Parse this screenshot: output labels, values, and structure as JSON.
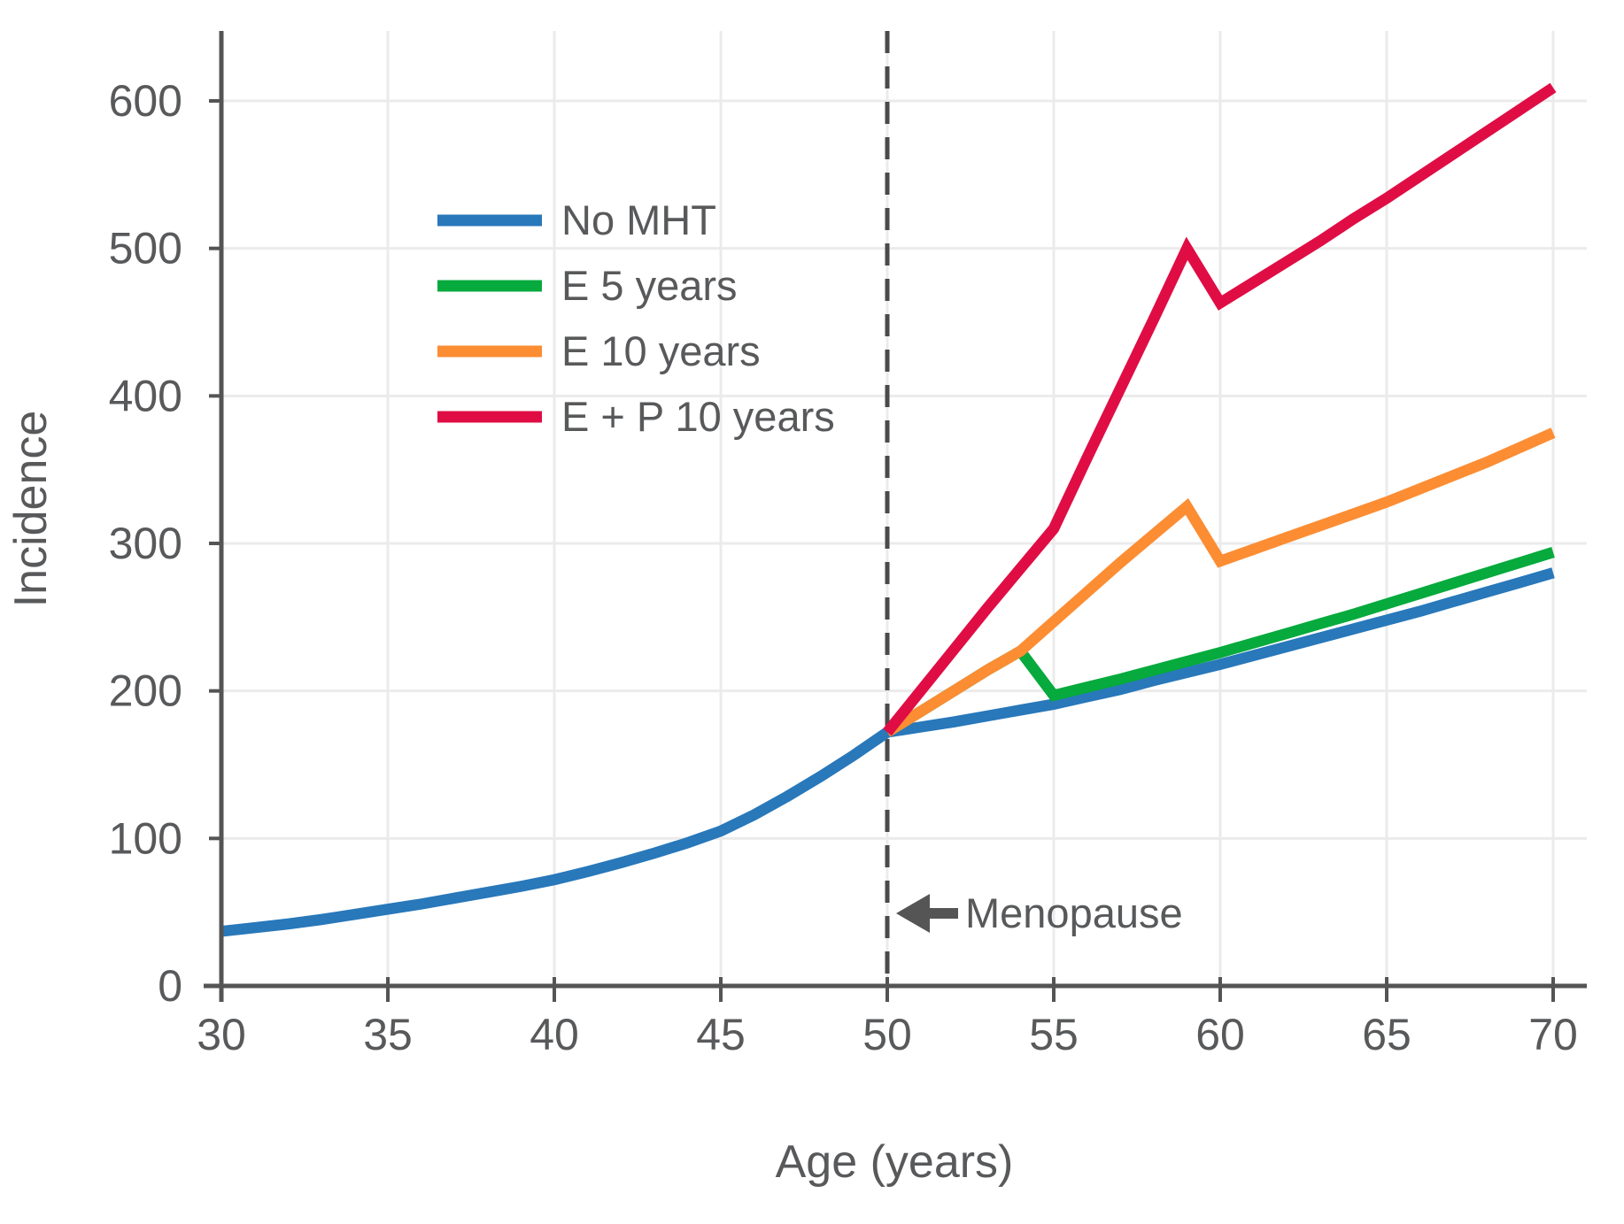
{
  "figure": {
    "ylabel": "Incidence",
    "xlabel": "Age (years)",
    "annotation_text": "Menopause"
  },
  "colors": {
    "axis": "#545454",
    "text": "#58595b",
    "grid": "#ebebeb",
    "dashed_line": "#4a4a4a",
    "arrow": "#555555"
  },
  "legend": {
    "items": [
      {
        "label": "No MHT",
        "color": "#2878ba"
      },
      {
        "label": "E 5 years",
        "color": "#06aa3d"
      },
      {
        "label": "E 10 years",
        "color": "#fc8d33"
      },
      {
        "label": "E + P 10 years",
        "color": "#e00d45"
      }
    ]
  },
  "chart_data": {
    "type": "line",
    "title": "",
    "xlabel": "Age (years)",
    "ylabel": "Incidence",
    "xlim": [
      30,
      70
    ],
    "ylim": [
      0,
      648
    ],
    "x_ticks": [
      30,
      35,
      40,
      45,
      50,
      55,
      60,
      65,
      70
    ],
    "y_ticks": [
      0,
      100,
      200,
      300,
      400,
      500,
      600
    ],
    "grid": true,
    "legend_position": "upper-left-inside",
    "vline": {
      "x": 50,
      "style": "dashed",
      "color": "#4a4a4a",
      "label": "Menopause"
    },
    "annotations": [
      {
        "text": "Menopause",
        "x": 50.5,
        "y": 50,
        "arrow": "left"
      }
    ],
    "series": [
      {
        "name": "No MHT",
        "color": "#2878ba",
        "points": [
          [
            30,
            37
          ],
          [
            31,
            39.5
          ],
          [
            32,
            42
          ],
          [
            33,
            45
          ],
          [
            34,
            48.5
          ],
          [
            35,
            52
          ],
          [
            36,
            55.5
          ],
          [
            37,
            59.5
          ],
          [
            38,
            63.5
          ],
          [
            39,
            67.5
          ],
          [
            40,
            72
          ],
          [
            41,
            77.5
          ],
          [
            42,
            83.5
          ],
          [
            43,
            90
          ],
          [
            44,
            97
          ],
          [
            45,
            105
          ],
          [
            46,
            116
          ],
          [
            47,
            128.5
          ],
          [
            48,
            142
          ],
          [
            49,
            156.5
          ],
          [
            50,
            172
          ],
          [
            51,
            175.5
          ],
          [
            52,
            179
          ],
          [
            53,
            183
          ],
          [
            54,
            187
          ],
          [
            55,
            191
          ],
          [
            56,
            196
          ],
          [
            57,
            201
          ],
          [
            58,
            207
          ],
          [
            59,
            212.5
          ],
          [
            60,
            218
          ],
          [
            61,
            224
          ],
          [
            62,
            230
          ],
          [
            63,
            236
          ],
          [
            64,
            242
          ],
          [
            65,
            248
          ],
          [
            66,
            254
          ],
          [
            67,
            260.5
          ],
          [
            68,
            267
          ],
          [
            69,
            273.5
          ],
          [
            70,
            280
          ]
        ]
      },
      {
        "name": "E 5 years",
        "color": "#06aa3d",
        "points": [
          [
            50,
            172
          ],
          [
            51,
            186
          ],
          [
            52,
            200
          ],
          [
            53,
            214
          ],
          [
            54,
            227
          ],
          [
            55,
            197
          ],
          [
            56,
            202.5
          ],
          [
            57,
            208
          ],
          [
            58,
            214
          ],
          [
            59,
            220
          ],
          [
            60,
            226
          ],
          [
            61,
            232.5
          ],
          [
            62,
            239
          ],
          [
            63,
            245.5
          ],
          [
            64,
            252
          ],
          [
            65,
            259
          ],
          [
            66,
            266
          ],
          [
            67,
            273
          ],
          [
            68,
            280
          ],
          [
            69,
            287
          ],
          [
            70,
            294
          ]
        ]
      },
      {
        "name": "E 10 years",
        "color": "#fc8d33",
        "points": [
          [
            50,
            172
          ],
          [
            51,
            186
          ],
          [
            52,
            200
          ],
          [
            53,
            214
          ],
          [
            54,
            227
          ],
          [
            55,
            247
          ],
          [
            56,
            267
          ],
          [
            57,
            287
          ],
          [
            58,
            306
          ],
          [
            59,
            325
          ],
          [
            60,
            288
          ],
          [
            61,
            296
          ],
          [
            62,
            304
          ],
          [
            63,
            312
          ],
          [
            64,
            320
          ],
          [
            65,
            328
          ],
          [
            66,
            337
          ],
          [
            67,
            346
          ],
          [
            68,
            355
          ],
          [
            69,
            365
          ],
          [
            70,
            375
          ]
        ]
      },
      {
        "name": "E + P 10 years",
        "color": "#e00d45",
        "points": [
          [
            50,
            172
          ],
          [
            51,
            200
          ],
          [
            52,
            228
          ],
          [
            53,
            256
          ],
          [
            54,
            283
          ],
          [
            55,
            310
          ],
          [
            56,
            358
          ],
          [
            57,
            405
          ],
          [
            58,
            452
          ],
          [
            59,
            500
          ],
          [
            60,
            463
          ],
          [
            61,
            477
          ],
          [
            62,
            491
          ],
          [
            63,
            505
          ],
          [
            64,
            520
          ],
          [
            65,
            534
          ],
          [
            66,
            549
          ],
          [
            67,
            564
          ],
          [
            68,
            579
          ],
          [
            69,
            594
          ],
          [
            70,
            609
          ]
        ]
      }
    ]
  }
}
